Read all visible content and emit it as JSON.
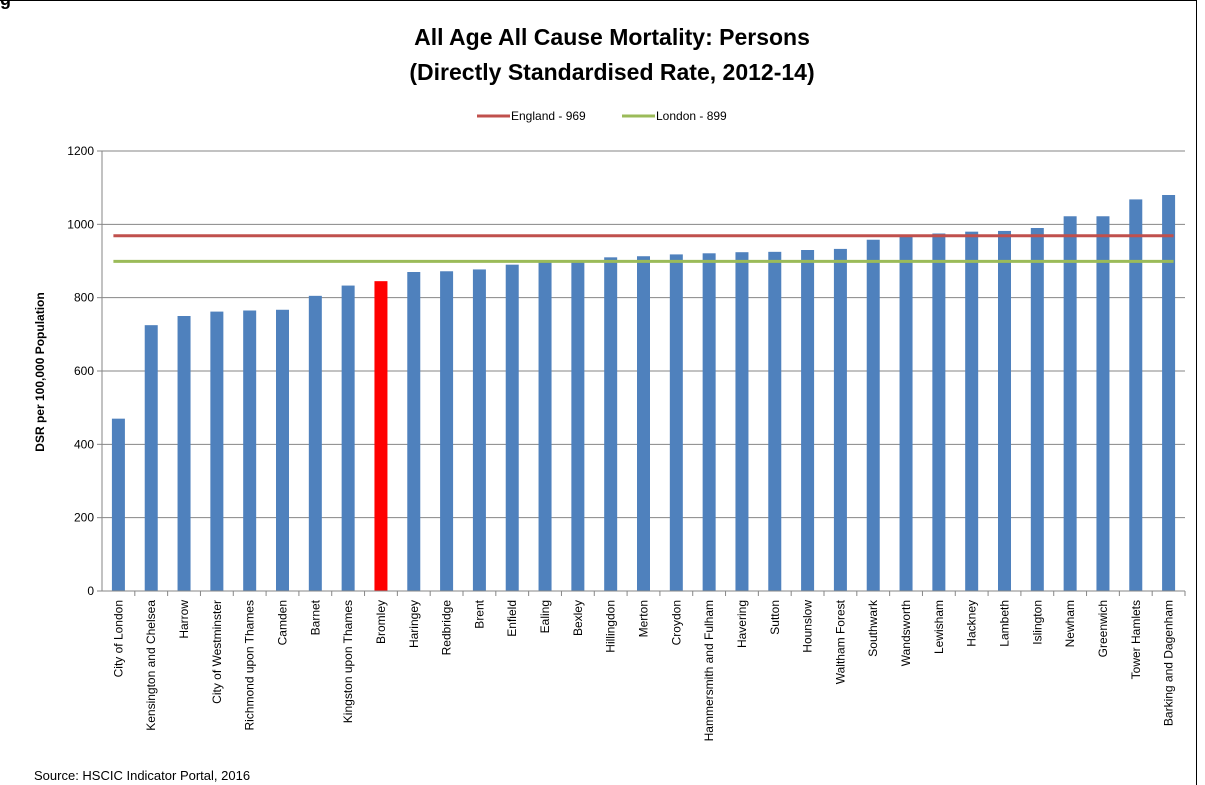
{
  "page": {
    "corner_label": "g",
    "source": "Source: HSCIC Indicator Portal, 2016"
  },
  "chart_data": {
    "type": "bar",
    "title": "All Age All Cause Mortality: Persons",
    "subtitle": "(Directly Standardised Rate, 2012-14)",
    "xlabel": "",
    "ylabel": "DSR per 100,000 Population",
    "ylim": [
      0,
      1200
    ],
    "yticks": [
      0,
      200,
      400,
      600,
      800,
      1000,
      1200
    ],
    "grid": true,
    "legend_position": "top",
    "bar_color": "#4f81bd",
    "highlight_color": "#ff0000",
    "highlight_category": "Bromley",
    "categories": [
      "City of London",
      "Kensington and Chelsea",
      "Harrow",
      "City of Westminster",
      "Richmond upon Thames",
      "Camden",
      "Barnet",
      "Kingston upon Thames",
      "Bromley",
      "Haringey",
      "Redbridge",
      "Brent",
      "Enfield",
      "Ealing",
      "Bexley",
      "Hillingdon",
      "Merton",
      "Croydon",
      "Hammersmith and Fulham",
      "Havering",
      "Sutton",
      "Hounslow",
      "Waltham Forest",
      "Southwark",
      "Wandsworth",
      "Lewisham",
      "Hackney",
      "Lambeth",
      "Islington",
      "Newham",
      "Greenwich",
      "Tower Hamlets",
      "Barking and Dagenham"
    ],
    "values": [
      470,
      725,
      750,
      762,
      765,
      767,
      805,
      833,
      845,
      870,
      872,
      877,
      890,
      898,
      900,
      910,
      913,
      918,
      921,
      924,
      925,
      930,
      933,
      958,
      968,
      975,
      980,
      982,
      990,
      1022,
      1022,
      1068,
      1080
    ],
    "reference_lines": [
      {
        "name": "England - 969",
        "value": 969,
        "color": "#c0504d"
      },
      {
        "name": "London - 899",
        "value": 899,
        "color": "#9bbb59"
      }
    ]
  }
}
